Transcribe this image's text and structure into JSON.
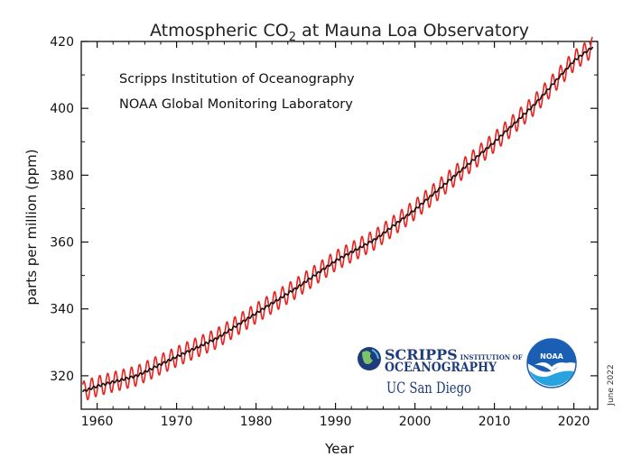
{
  "chart_data": {
    "type": "line",
    "title_prefix": "Atmospheric CO",
    "title_subscript": "2",
    "title_suffix": " at Mauna Loa Observatory",
    "xlabel": "Year",
    "ylabel": "parts per million (ppm)",
    "xlim": [
      1958,
      2023
    ],
    "ylim": [
      310,
      420
    ],
    "x_ticks": [
      1960,
      1970,
      1980,
      1990,
      2000,
      2010,
      2020
    ],
    "y_ticks": [
      320,
      340,
      360,
      380,
      400,
      420
    ],
    "grid": false,
    "series": [
      {
        "description": "monthly mean (red, with seasonal cycle)",
        "color": "#e8221f",
        "seasonal_amplitude_ppm": 3.2,
        "x": [
          1958.2,
          1960,
          1965,
          1970,
          1975,
          1980,
          1985,
          1990,
          1995,
          2000,
          2005,
          2010,
          2015,
          2020,
          2022.4
        ],
        "values": [
          315.3,
          316.9,
          320.0,
          325.7,
          331.1,
          338.7,
          346.1,
          354.4,
          360.8,
          369.7,
          379.8,
          389.9,
          401.0,
          414.2,
          419.5
        ]
      },
      {
        "description": "seasonally corrected trend (black)",
        "color": "#111111",
        "x": [
          1958.2,
          1960,
          1965,
          1970,
          1975,
          1980,
          1985,
          1990,
          1995,
          2000,
          2005,
          2010,
          2015,
          2020,
          2022.4
        ],
        "values": [
          315.3,
          316.9,
          320.0,
          325.7,
          331.1,
          338.7,
          346.1,
          354.4,
          360.8,
          369.7,
          379.8,
          389.9,
          401.0,
          414.2,
          418.4
        ]
      }
    ],
    "annotations": [
      "Scripps Institution of Oceanography",
      "NOAA Global Monitoring Laboratory"
    ]
  },
  "logos": {
    "scripps_line1": "SCRIPPS",
    "scripps_line1_small": "INSTITUTION OF",
    "scripps_line2": "OCEANOGRAPHY",
    "ucsd": "UC San Diego",
    "noaa": "NOAA"
  },
  "date_stamp": "June 2022",
  "colors": {
    "monthly": "#e8221f",
    "trend": "#111111",
    "noaa_blue": "#1a5fb4",
    "noaa_light": "#29a3e0",
    "scripps_navy": "#1f3c7a"
  }
}
